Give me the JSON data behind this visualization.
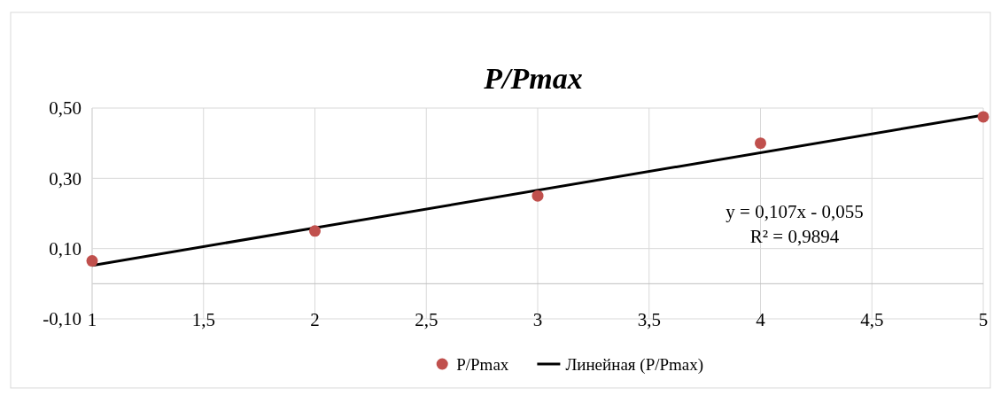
{
  "chart_data": {
    "type": "scatter",
    "title": "P/Pmax",
    "xlim": [
      1,
      5
    ],
    "xticks": [
      {
        "value": 1,
        "label": "1"
      },
      {
        "value": 1.5,
        "label": "1,5"
      },
      {
        "value": 2,
        "label": "2"
      },
      {
        "value": 2.5,
        "label": "2,5"
      },
      {
        "value": 3,
        "label": "3"
      },
      {
        "value": 3.5,
        "label": "3,5"
      },
      {
        "value": 4,
        "label": "4"
      },
      {
        "value": 4.5,
        "label": "4,5"
      },
      {
        "value": 5,
        "label": "5"
      }
    ],
    "ylim": [
      -0.1,
      0.5
    ],
    "yticks": [
      {
        "value": -0.1,
        "label": "-0,10"
      },
      {
        "value": 0.1,
        "label": "0,10"
      },
      {
        "value": 0.3,
        "label": "0,30"
      },
      {
        "value": 0.5,
        "label": "0,50"
      }
    ],
    "grid": true,
    "legend": "bottom",
    "series": [
      {
        "name": "P/Pmax",
        "color": "#c0504d",
        "marker": "circle",
        "x": [
          1,
          2,
          3,
          4,
          5
        ],
        "values": [
          0.065,
          0.15,
          0.25,
          0.4,
          0.475
        ]
      },
      {
        "name": "Линейная (P/Pmax)",
        "type": "line",
        "color": "#000000",
        "marker": "none",
        "line_style": "solid",
        "x": [
          1,
          5
        ],
        "values": [
          0.052,
          0.48
        ]
      }
    ],
    "annotations": [
      "y = 0,107x - 0,055",
      "R² = 0,9894"
    ]
  }
}
